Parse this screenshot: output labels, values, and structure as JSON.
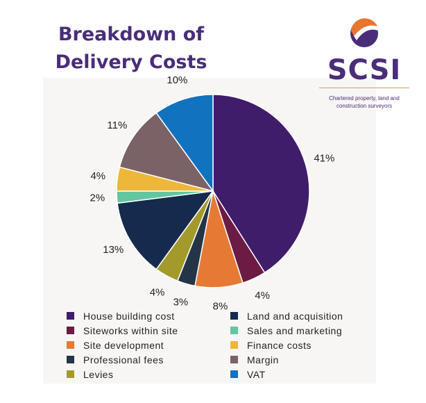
{
  "title": {
    "line1": "Breakdown of",
    "line2": "Delivery Costs"
  },
  "logo": {
    "text": "SCSI",
    "tagline_line1": "Chartered property, land and",
    "tagline_line2": "construction surveyors"
  },
  "colors": {
    "title": "#4a2d7a",
    "panel_bg": "#f7f6f4"
  },
  "chart_data": {
    "type": "pie",
    "slices": [
      {
        "label": "House building cost",
        "value": 41,
        "display": "41%",
        "color": "#3f1d6b"
      },
      {
        "label": "Siteworks within site",
        "value": 4,
        "display": "4%",
        "color": "#6b1b44"
      },
      {
        "label": "Site development",
        "value": 8,
        "display": "8%",
        "color": "#e67a35"
      },
      {
        "label": "Professional fees",
        "value": 3,
        "display": "3%",
        "color": "#253548"
      },
      {
        "label": "Levies",
        "value": 4,
        "display": "4%",
        "color": "#a49a2c"
      },
      {
        "label": "Land and acquisition",
        "value": 13,
        "display": "13%",
        "color": "#152a4d"
      },
      {
        "label": "Sales and marketing",
        "value": 2,
        "display": "2%",
        "color": "#62c6a0"
      },
      {
        "label": "Finance costs",
        "value": 4,
        "display": "4%",
        "color": "#eeb73a"
      },
      {
        "label": "Margin",
        "value": 11,
        "display": "11%",
        "color": "#7b6266"
      },
      {
        "label": "VAT",
        "value": 10,
        "display": "10%",
        "color": "#1172bf"
      }
    ],
    "legend_order": [
      "House building cost",
      "Land and acquisition",
      "Siteworks within site",
      "Sales and marketing",
      "Site development",
      "Finance costs",
      "Professional fees",
      "Margin",
      "Levies",
      "VAT"
    ],
    "start": "12 o'clock",
    "direction": "clockwise",
    "legend_position": "bottom"
  }
}
